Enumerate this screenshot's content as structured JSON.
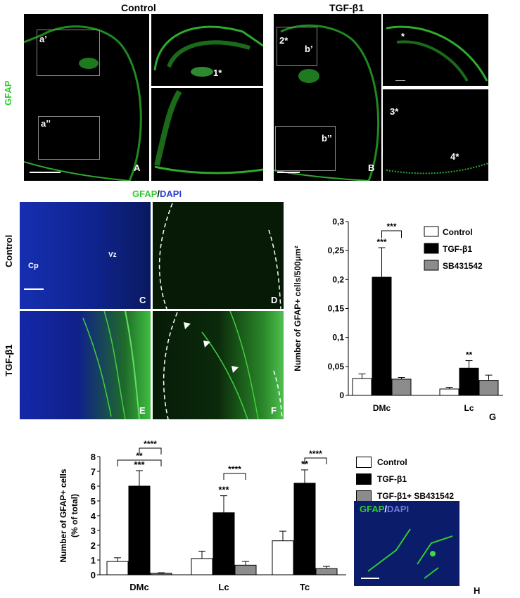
{
  "top": {
    "control_title": "Control",
    "tgf_title": "TGF-β1",
    "side_label": "GFAP",
    "panel_A": {
      "letter": "A",
      "box1": "a’",
      "box2": "a’’"
    },
    "panel_a1": {
      "mark": "1*"
    },
    "panel_B": {
      "letter": "B",
      "box1_star": "2*",
      "box1_label": "b’",
      "box2": "b’’"
    },
    "panel_b1": {
      "mark": "*"
    },
    "panel_b2": {
      "mark3": "3*",
      "mark4": "4*"
    }
  },
  "mid": {
    "heading_gfap": "GFAP",
    "heading_sep": "/",
    "heading_dapi": "DAPI",
    "row_control": "Control",
    "row_tgf": "TGF-β1",
    "C": {
      "letter": "C",
      "cp": "Cp",
      "vz": "Vz"
    },
    "D": {
      "letter": "D"
    },
    "E": {
      "letter": "E"
    },
    "F": {
      "letter": "F"
    }
  },
  "chart_data": [
    {
      "type": "bar",
      "panel": "G",
      "ylabel": "Number of GFAP+ cells/500μm²",
      "categories": [
        "DMc",
        "Lc"
      ],
      "series": [
        {
          "name": "Control",
          "values": [
            0.029,
            0.011
          ],
          "errors": [
            0.008,
            0.003
          ]
        },
        {
          "name": "TGF-β1",
          "values": [
            0.204,
            0.047
          ],
          "errors": [
            0.051,
            0.013
          ]
        },
        {
          "name": "SB431542",
          "values": [
            0.028,
            0.026
          ],
          "errors": [
            0.003,
            0.009
          ]
        }
      ],
      "ylim": [
        0,
        0.3
      ],
      "yticks": [
        "0",
        "0,05",
        "0,1",
        "0,15",
        "0,2",
        "0,25",
        "0,3"
      ],
      "significance": {
        "dmc_tgf": "***",
        "dmc_bracket": "***",
        "lc_tgf": "**"
      },
      "colors": [
        "#ffffff",
        "#000000",
        "#8c8c8c"
      ]
    },
    {
      "type": "bar",
      "panel": "H",
      "ylabel_line1": "Number of GFAP+ cells",
      "ylabel_line2": "(% of total)",
      "categories": [
        "DMc",
        "Lc",
        "Tc"
      ],
      "series": [
        {
          "name": "Control",
          "values": [
            0.9,
            1.1,
            2.3
          ],
          "errors": [
            0.25,
            0.5,
            0.65
          ]
        },
        {
          "name": "TGF-β1",
          "values": [
            6.0,
            4.2,
            6.2
          ],
          "errors": [
            1.05,
            1.15,
            0.9
          ]
        },
        {
          "name": "TGF-β1+ SB431542",
          "values": [
            0.1,
            0.65,
            0.42
          ],
          "errors": [
            0.04,
            0.25,
            0.15
          ]
        }
      ],
      "ylim": [
        0,
        8
      ],
      "yticks": [
        "0",
        "1",
        "2",
        "3",
        "4",
        "5",
        "6",
        "7",
        "8"
      ],
      "significance": {
        "dmc_outer": "**",
        "dmc_inner": "****",
        "dmc_tgf": "***",
        "lc_bracket": "****",
        "lc_tgf": "***",
        "tc_bracket": "****",
        "tc_tgf": "**"
      },
      "colors": [
        "#ffffff",
        "#000000",
        "#8c8c8c"
      ]
    }
  ],
  "inset_H": {
    "gfap": "GFAP",
    "sep": "/",
    "dapi": "DAPI"
  },
  "panel_H_letter": "H",
  "panel_G_letter": "G"
}
